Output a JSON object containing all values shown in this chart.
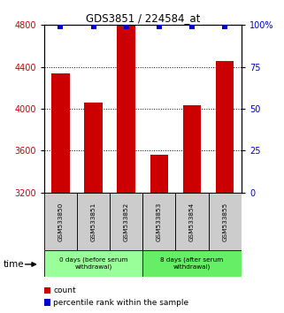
{
  "title": "GDS3851 / 224584_at",
  "samples": [
    "GSM533850",
    "GSM533851",
    "GSM533852",
    "GSM533853",
    "GSM533854",
    "GSM533855"
  ],
  "counts": [
    4340,
    4060,
    4800,
    3565,
    4035,
    4460
  ],
  "percentiles": [
    99,
    99,
    99,
    99,
    99,
    99
  ],
  "y_min": 3200,
  "y_max": 4800,
  "y_ticks": [
    3200,
    3600,
    4000,
    4400,
    4800
  ],
  "y2_ticks": [
    0,
    25,
    50,
    75,
    100
  ],
  "bar_color": "#cc0000",
  "percentile_color": "#0000cc",
  "groups": [
    {
      "label": "0 days (before serum\nwithdrawal)",
      "samples_idx": [
        0,
        1,
        2
      ],
      "color": "#99ff99"
    },
    {
      "label": "8 days (after serum\nwithdrawal)",
      "samples_idx": [
        3,
        4,
        5
      ],
      "color": "#66ee66"
    }
  ],
  "xlabel_color": "#cc0000",
  "y2_color": "#0000cc",
  "grid_color": "#000000",
  "background_color": "#ffffff",
  "sample_box_color": "#cccccc",
  "time_label": "time",
  "legend_count_label": "count",
  "legend_percentile_label": "percentile rank within the sample"
}
